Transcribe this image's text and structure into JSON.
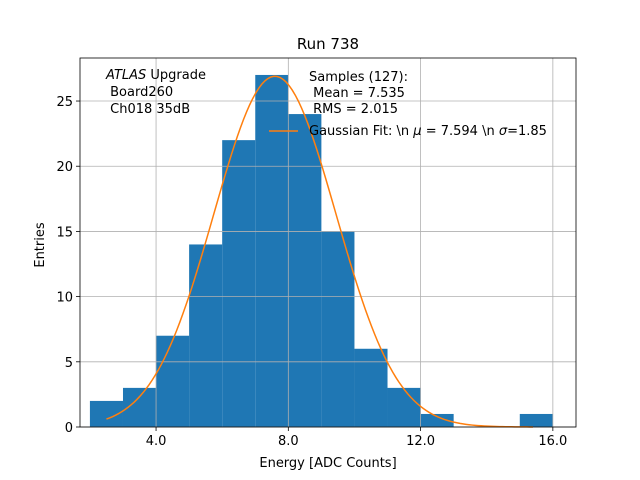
{
  "chart_data": {
    "type": "bar",
    "title": "Run 738",
    "xlabel": "Energy [ADC Counts]",
    "ylabel": "Entries",
    "xlim": [
      1.7,
      16.7
    ],
    "ylim": [
      0,
      28.3
    ],
    "grid": true,
    "x_ticks": [
      4.0,
      8.0,
      12.0,
      16.0
    ],
    "x_tick_labels": [
      "4.0",
      "8.0",
      "12.0",
      "16.0"
    ],
    "y_ticks": [
      0,
      5,
      10,
      15,
      20,
      25
    ],
    "y_tick_labels": [
      "0",
      "5",
      "10",
      "15",
      "20",
      "25"
    ],
    "bin_edges": [
      2,
      3,
      4,
      5,
      6,
      7,
      8,
      9,
      10,
      11,
      12,
      13,
      14,
      15,
      16
    ],
    "values": [
      2,
      3,
      7,
      14,
      22,
      27,
      24,
      15,
      6,
      3,
      1,
      0,
      0,
      1
    ],
    "bar_color": "#1f77b4",
    "fit": {
      "type": "line",
      "color": "#ff7f0e",
      "mu": 7.594,
      "sigma": 1.85,
      "amplitude": 26.9,
      "x_range": [
        2.5,
        15.4
      ]
    },
    "annotation": {
      "italic_part": "ATLAS",
      "line1_rest": " Upgrade",
      "line2": " Board260",
      "line3": " Ch018 35dB"
    },
    "legend": {
      "placement": "top-right",
      "stats_line1": "Samples (127):",
      "stats_line2": " Mean = 7.535",
      "stats_line3": " RMS = 2.015",
      "fit_label_a": "Gaussian Fit: \\n ",
      "fit_label_mu": "μ",
      "fit_label_b": " = 7.594 \\n ",
      "fit_label_sigma": "σ",
      "fit_label_c": "=1.85"
    }
  }
}
